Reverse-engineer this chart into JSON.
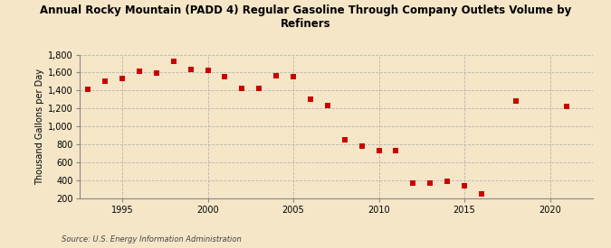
{
  "title": "Annual Rocky Mountain (PADD 4) Regular Gasoline Through Company Outlets Volume by\nRefiners",
  "ylabel": "Thousand Gallons per Day",
  "source": "Source: U.S. Energy Information Administration",
  "background_color": "#f5e6c8",
  "marker_color": "#cc0000",
  "years": [
    1993,
    1994,
    1995,
    1996,
    1997,
    1998,
    1999,
    2000,
    2001,
    2002,
    2003,
    2004,
    2005,
    2006,
    2007,
    2008,
    2009,
    2010,
    2011,
    2012,
    2013,
    2014,
    2015,
    2016,
    2018,
    2021
  ],
  "values": [
    1410,
    1500,
    1535,
    1610,
    1595,
    1720,
    1635,
    1620,
    1550,
    1420,
    1420,
    1560,
    1550,
    1300,
    1230,
    850,
    780,
    730,
    730,
    370,
    370,
    390,
    340,
    250,
    1280,
    1225
  ],
  "ylim": [
    200,
    1800
  ],
  "yticks": [
    200,
    400,
    600,
    800,
    1000,
    1200,
    1400,
    1600,
    1800
  ],
  "xlim": [
    1992.5,
    2022.5
  ],
  "xticks": [
    1995,
    2000,
    2005,
    2010,
    2015,
    2020
  ]
}
